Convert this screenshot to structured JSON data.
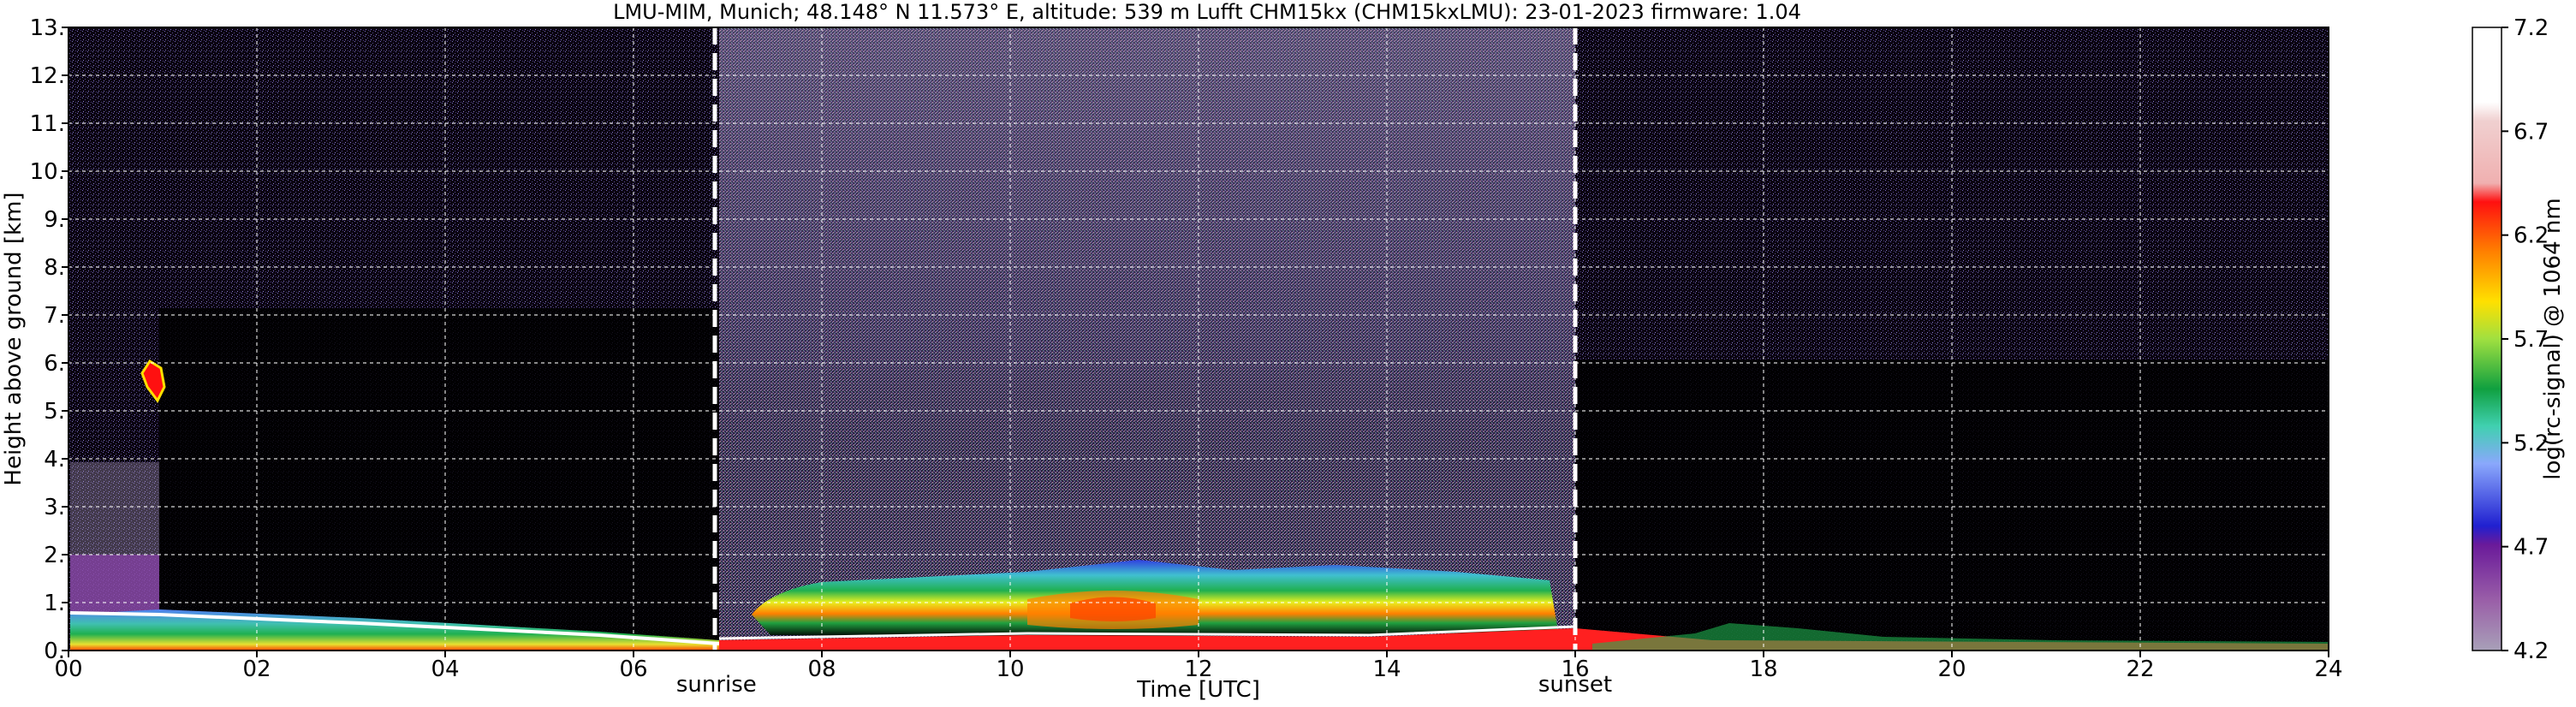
{
  "chart_data": {
    "type": "heatmap",
    "title": "LMU-MIM, Munich; 48.148° N 11.573° E, altitude: 539 m    Lufft CHM15kx (CHM15kxLMU): 23-01-2023    firmware: 1.04",
    "xlabel": "Time [UTC]",
    "ylabel": "Height above ground [km]",
    "xlim": [
      0,
      24
    ],
    "ylim": [
      0,
      13
    ],
    "x_ticks": [
      "00",
      "02",
      "04",
      "06",
      "08",
      "10",
      "12",
      "14",
      "16",
      "18",
      "20",
      "22",
      "24"
    ],
    "y_ticks": [
      "0.",
      "1.",
      "2.",
      "3.",
      "4.",
      "5.",
      "6.",
      "7.",
      "8.",
      "9.",
      "10.",
      "11.",
      "12.",
      "13."
    ],
    "grid": true,
    "colorbar": {
      "label": "log(rc-signal) @ 1064 nm",
      "range": [
        4.2,
        7.2
      ],
      "ticks": [
        "4.2",
        "4.7",
        "5.2",
        "5.7",
        "6.2",
        "6.7",
        "7.2"
      ],
      "colors": [
        "#a8a0b8",
        "#a07fb0",
        "#9a5fa8",
        "#8f3fa0",
        "#85209a",
        "#6a1a9a",
        "#2020d0",
        "#2a4ae8",
        "#4a70f0",
        "#6a90f8",
        "#8aa8fc",
        "#5ab8d8",
        "#40d0b0",
        "#20c070",
        "#10a040",
        "#50c850",
        "#a0e040",
        "#e8f020",
        "#ffe000",
        "#ffb000",
        "#ff8000",
        "#ff4000",
        "#ff1010",
        "#f06060",
        "#f0b0b0",
        "#f0d0d0",
        "#ffffff",
        "#ffffff"
      ]
    },
    "events": [
      {
        "label": "sunrise",
        "time": 6.88
      },
      {
        "label": "sunset",
        "time": 16.0
      }
    ],
    "cloud_layer": {
      "time_range": [
        7.4,
        15.8
      ],
      "height_range_km": [
        0.5,
        1.7
      ],
      "peak_log_signal": 6.4
    },
    "high_cloud": {
      "time": 0.9,
      "height_km": 5.7
    }
  }
}
